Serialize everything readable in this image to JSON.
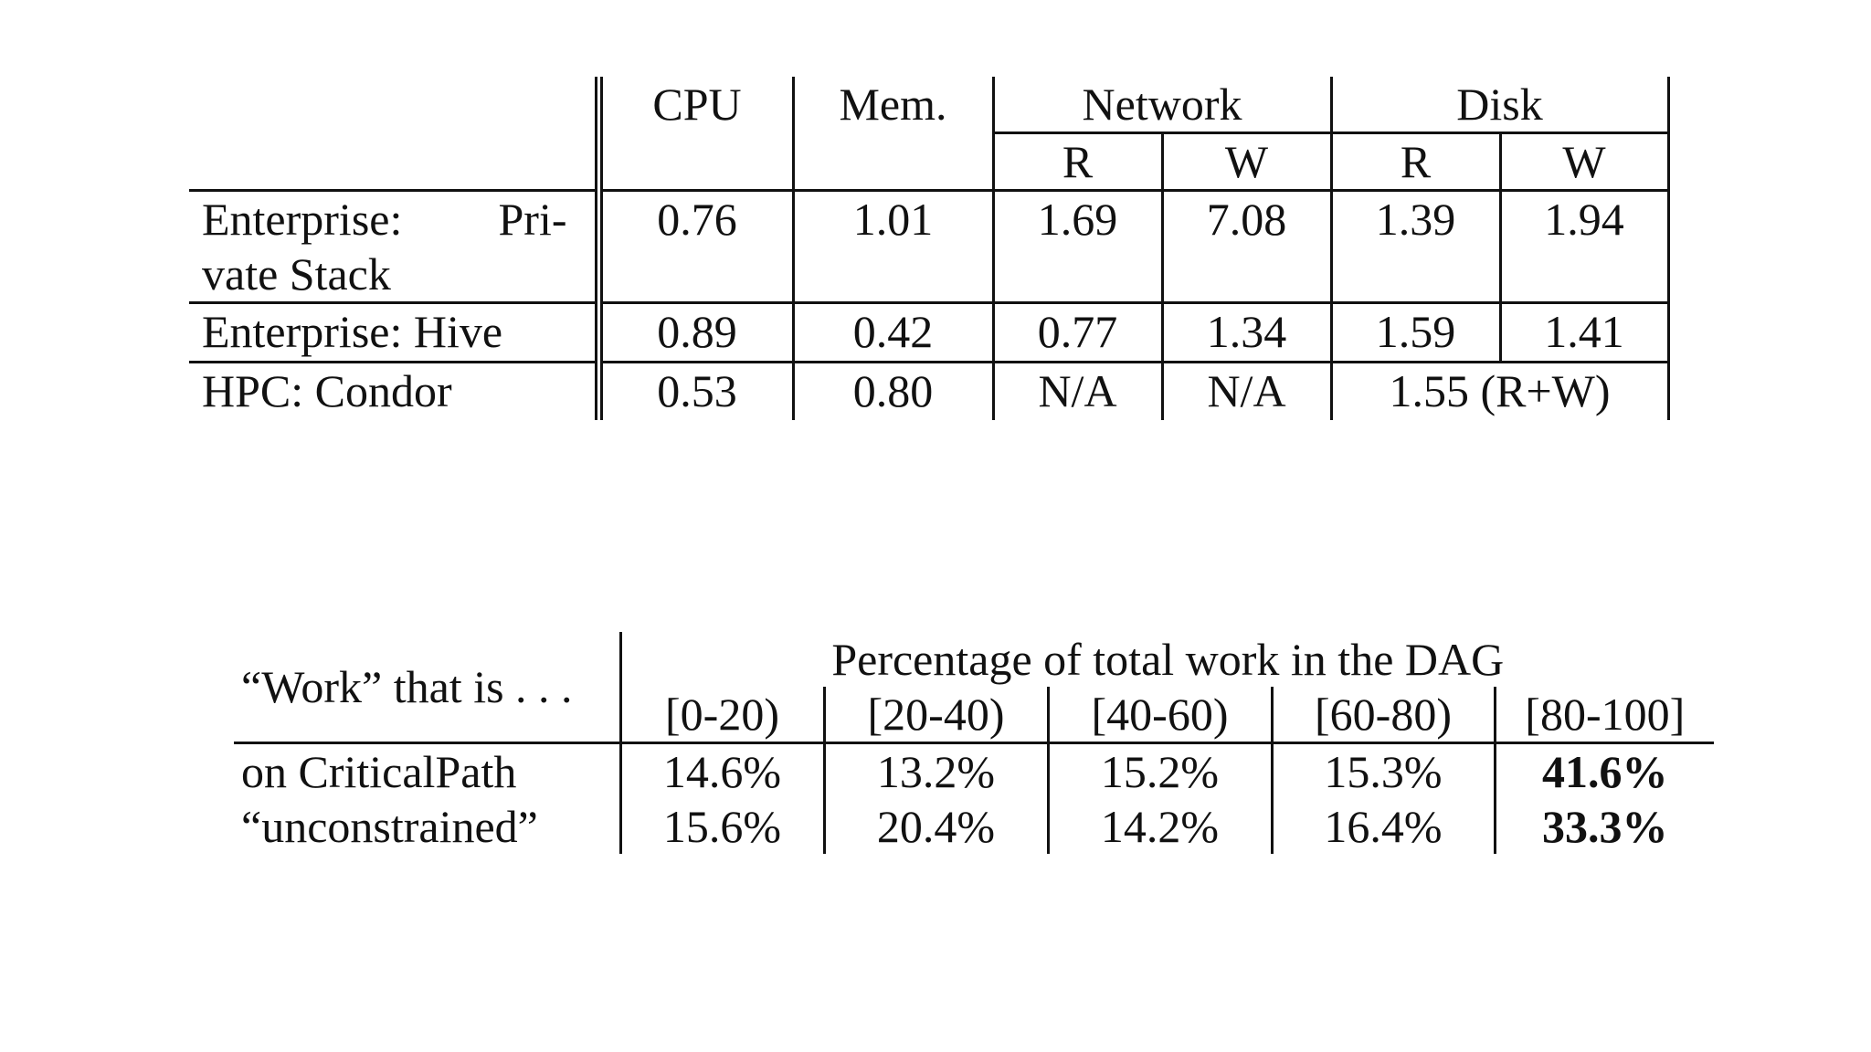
{
  "table1": {
    "headers": {
      "cpu": "CPU",
      "mem": "Mem.",
      "network": "Network",
      "disk": "Disk",
      "net_r": "R",
      "net_w": "W",
      "disk_r": "R",
      "disk_w": "W"
    },
    "rows": [
      {
        "label_line1_a": "Enterprise:",
        "label_line1_b": "Pri-",
        "label_line2": "vate Stack",
        "cpu": "0.76",
        "mem": "1.01",
        "net_r": "1.69",
        "net_w": "7.08",
        "disk_r": "1.39",
        "disk_w": "1.94"
      },
      {
        "label": "Enterprise: Hive",
        "cpu": "0.89",
        "mem": "0.42",
        "net_r": "0.77",
        "net_w": "1.34",
        "disk_r": "1.59",
        "disk_w": "1.41"
      },
      {
        "label": "HPC: Condor",
        "cpu": "0.53",
        "mem": "0.80",
        "net_r": "N/A",
        "net_w": "N/A",
        "disk_rw": "1.55 (R+W)"
      }
    ]
  },
  "table2": {
    "work_header": "“Work” that is . . .",
    "group_header": "Percentage of total work in the DAG",
    "bins": [
      "[0-20)",
      "[20-40)",
      "[40-60)",
      "[60-80)",
      "[80-100]"
    ],
    "rows": [
      {
        "label": "on CriticalPath",
        "values": [
          "14.6%",
          "13.2%",
          "15.2%",
          "15.3%"
        ],
        "bold_value": "41.6%"
      },
      {
        "label": "“unconstrained”",
        "values": [
          "15.6%",
          "20.4%",
          "14.2%",
          "16.4%"
        ],
        "bold_value": "33.3%"
      }
    ]
  }
}
